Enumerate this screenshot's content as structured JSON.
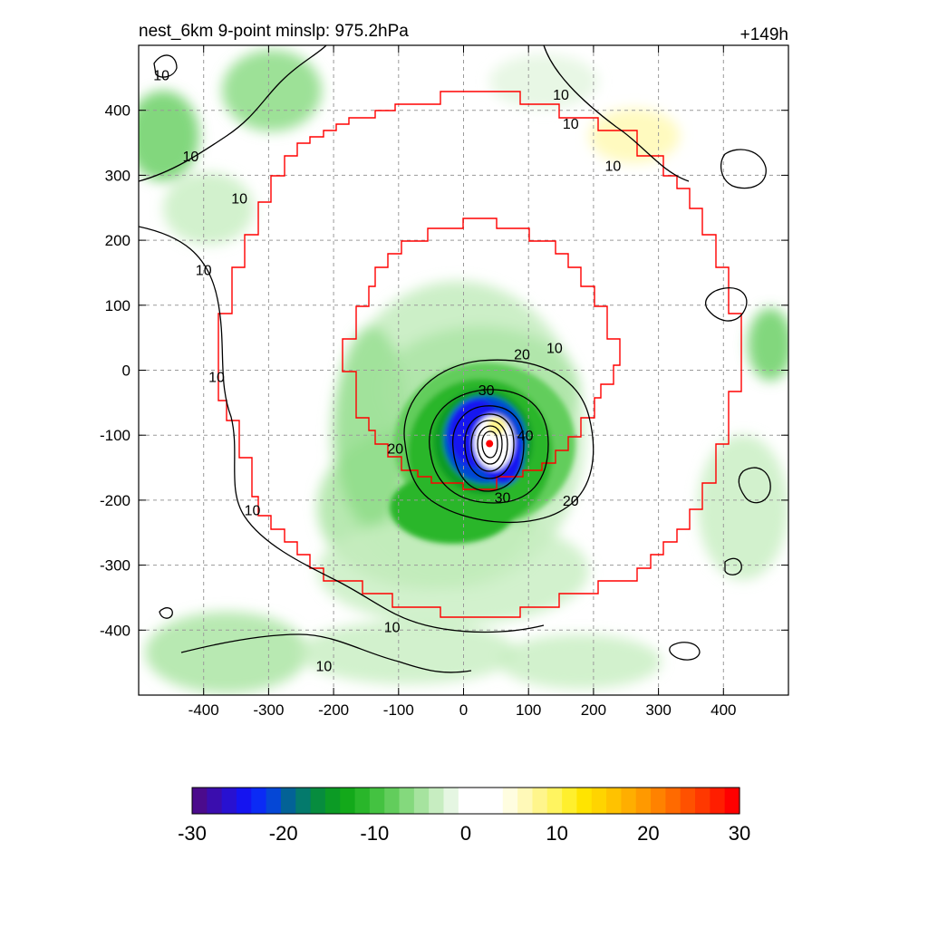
{
  "header": {
    "left_title": "nest_6km  9-point minslp: 975.2hPa",
    "right_title": "+149h"
  },
  "chart_data": {
    "type": "heatmap",
    "title": "nest_6km  9-point minslp: 975.2hPa",
    "subtitle": "+149h",
    "xlabel": "",
    "ylabel": "",
    "xlim": [
      -500,
      500
    ],
    "ylim": [
      -500,
      500
    ],
    "x_ticks": [
      -400,
      -300,
      -200,
      -100,
      0,
      100,
      200,
      300,
      400
    ],
    "y_ticks": [
      -400,
      -300,
      -200,
      -100,
      0,
      100,
      200,
      300,
      400
    ],
    "grid": true,
    "center_marker": {
      "x": 40,
      "y": -113
    },
    "contour_labels": [
      {
        "text": "10",
        "x": -465,
        "y": 455
      },
      {
        "text": "10",
        "x": -420,
        "y": 330
      },
      {
        "text": "10",
        "x": -345,
        "y": 265
      },
      {
        "text": "10",
        "x": -400,
        "y": 155
      },
      {
        "text": "10",
        "x": -380,
        "y": -10
      },
      {
        "text": "10",
        "x": -325,
        "y": -215
      },
      {
        "text": "10",
        "x": -110,
        "y": -395
      },
      {
        "text": "10",
        "x": -215,
        "y": -455
      },
      {
        "text": "10",
        "x": 150,
        "y": 425
      },
      {
        "text": "10",
        "x": 165,
        "y": 380
      },
      {
        "text": "10",
        "x": 230,
        "y": 315
      },
      {
        "text": "10",
        "x": 140,
        "y": 35
      },
      {
        "text": "20",
        "x": 90,
        "y": 25
      },
      {
        "text": "20",
        "x": -105,
        "y": -120
      },
      {
        "text": "20",
        "x": 165,
        "y": -200
      },
      {
        "text": "30",
        "x": 35,
        "y": -30
      },
      {
        "text": "30",
        "x": 60,
        "y": -195
      },
      {
        "text": "40",
        "x": 95,
        "y": -100
      }
    ],
    "colorbar": {
      "min": -30,
      "max": 30,
      "ticks": [
        -30,
        -20,
        -10,
        0,
        10,
        20,
        30
      ],
      "colors": [
        "#4b0b8c",
        "#3a0dae",
        "#2811d1",
        "#1514f0",
        "#0b2bf5",
        "#0547d6",
        "#036296",
        "#047a6c",
        "#078c3e",
        "#0c9b25",
        "#13a91a",
        "#29b62a",
        "#44c241",
        "#62cd5c",
        "#84d97d",
        "#a6e39f",
        "#c7edc1",
        "#e5f6e2",
        "#ffffff",
        "#ffffff",
        "#ffffff",
        "#fffde0",
        "#fff9b8",
        "#fff58c",
        "#fff460",
        "#ffef2d",
        "#ffe400",
        "#ffd400",
        "#ffc200",
        "#ffae00",
        "#ff9900",
        "#ff8200",
        "#ff6a00",
        "#ff5100",
        "#ff3800",
        "#ff1e00",
        "#ff0000"
      ]
    },
    "rings": [
      {
        "name": "inner",
        "color": "#ff0000"
      },
      {
        "name": "outer",
        "color": "#ff0000"
      }
    ]
  }
}
